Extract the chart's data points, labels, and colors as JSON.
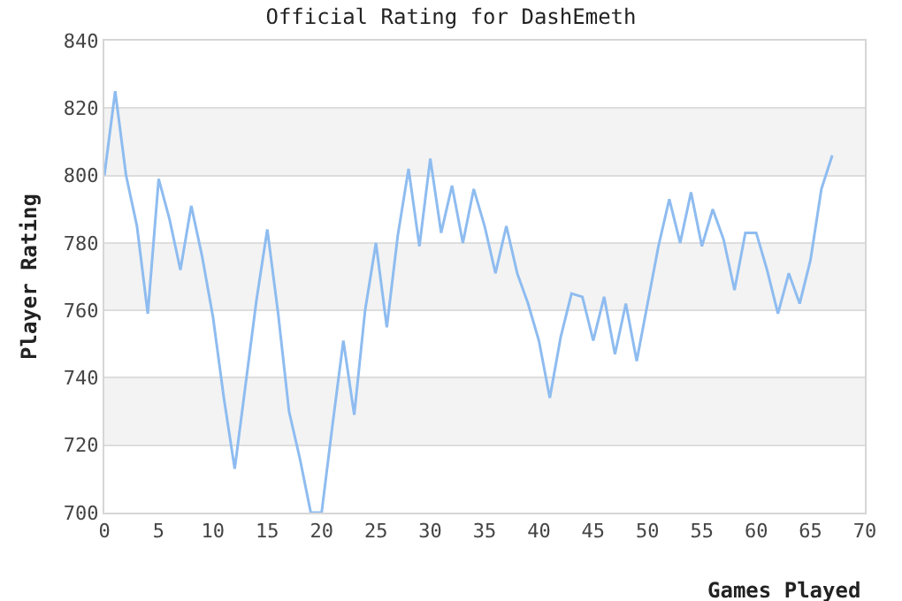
{
  "chart_data": {
    "type": "line",
    "title": "Official Rating for DashEmeth",
    "xlabel": "Games Played",
    "ylabel": "Player Rating",
    "x": [
      0,
      1,
      2,
      3,
      4,
      5,
      6,
      7,
      8,
      9,
      10,
      11,
      12,
      13,
      14,
      15,
      16,
      17,
      18,
      19,
      20,
      21,
      22,
      23,
      24,
      25,
      26,
      27,
      28,
      29,
      30,
      31,
      32,
      33,
      34,
      35,
      36,
      37,
      38,
      39,
      40,
      41,
      42,
      43,
      44,
      45,
      46,
      47,
      48,
      49,
      50,
      51,
      52,
      53,
      54,
      55,
      56,
      57,
      58,
      59,
      60,
      61,
      62,
      63,
      64,
      65,
      66,
      67
    ],
    "series": [
      {
        "color": "#8ebcf0",
        "values": [
          800,
          825,
          800,
          785,
          759,
          799,
          787,
          772,
          791,
          776,
          758,
          734,
          713,
          738,
          763,
          784,
          759,
          730,
          716,
          700,
          700,
          726,
          751,
          729,
          760,
          780,
          755,
          782,
          802,
          779,
          805,
          783,
          797,
          780,
          796,
          785,
          771,
          785,
          771,
          762,
          751,
          734,
          752,
          765,
          764,
          751,
          764,
          747,
          762,
          745,
          762,
          779,
          793,
          780,
          795,
          779,
          790,
          781,
          766,
          783,
          783,
          772,
          759,
          771,
          762,
          775,
          796,
          806
        ]
      }
    ],
    "xlim": [
      0,
      70
    ],
    "xticks": [
      0,
      5,
      10,
      15,
      20,
      25,
      30,
      35,
      40,
      45,
      50,
      55,
      60,
      65,
      70
    ],
    "ylim": [
      700,
      840
    ],
    "yticks": [
      700,
      720,
      740,
      760,
      780,
      800,
      820,
      840
    ],
    "bands": [
      {
        "axis": "y",
        "from": 720,
        "to": 740,
        "color": "#f3f3f3"
      },
      {
        "axis": "y",
        "from": 760,
        "to": 780,
        "color": "#f3f3f3"
      },
      {
        "axis": "y",
        "from": 800,
        "to": 820,
        "color": "#f3f3f3"
      }
    ],
    "grid": "y",
    "marker": "none",
    "line_style": "solid"
  }
}
